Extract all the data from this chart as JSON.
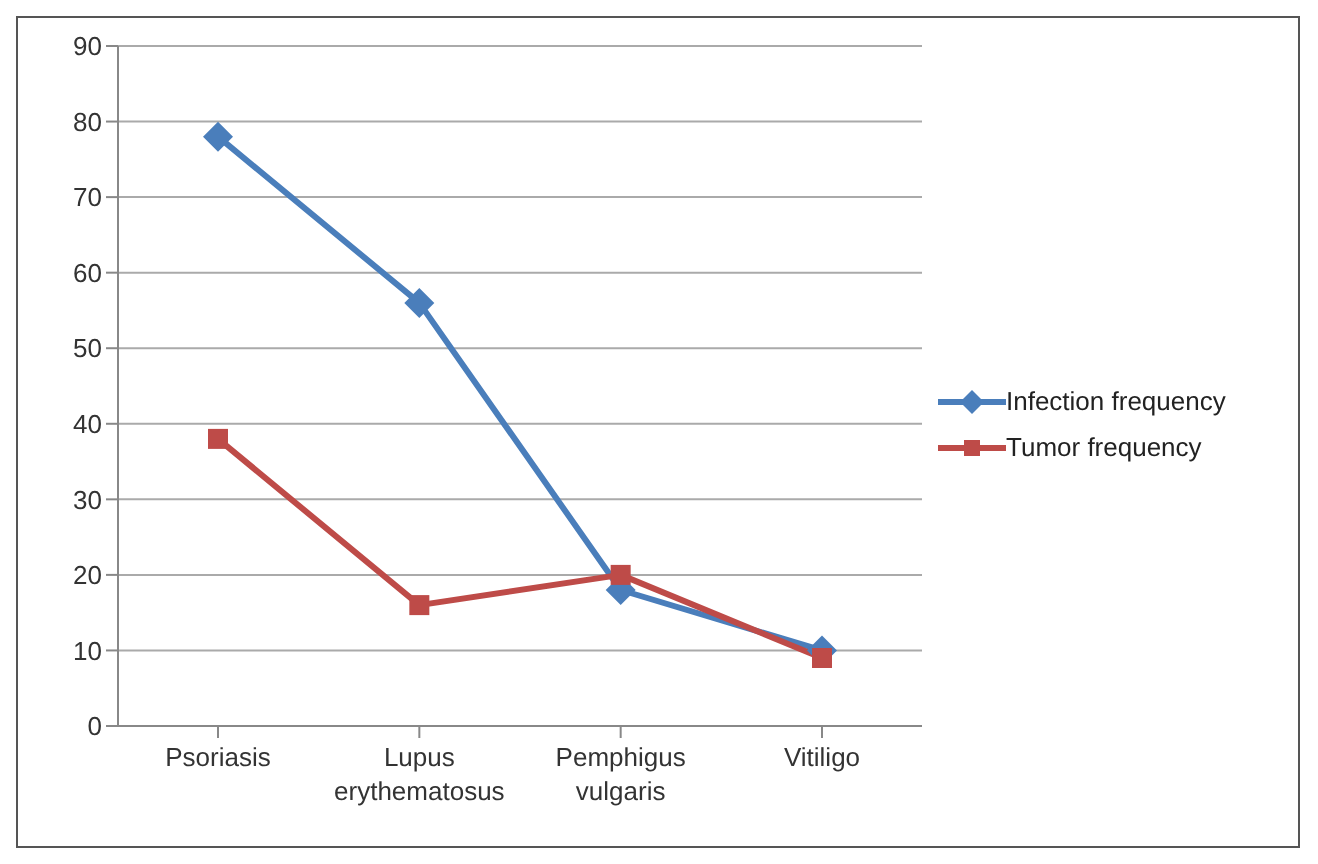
{
  "chart_data": {
    "type": "line",
    "categories": [
      "Psoriasis",
      "Lupus erythematosus",
      "Pemphigus vulgaris",
      "Vitiligo"
    ],
    "series": [
      {
        "name": "Infection frequency",
        "color": "#4a7ebb",
        "values": [
          78,
          56,
          18,
          10
        ],
        "marker": "diamond"
      },
      {
        "name": "Tumor frequency",
        "color": "#be4b48",
        "values": [
          38,
          16,
          20,
          9
        ],
        "marker": "square"
      }
    ],
    "ylim": [
      0,
      90
    ],
    "yticks": [
      0,
      10,
      20,
      30,
      40,
      50,
      60,
      70,
      80,
      90
    ],
    "grid": "y",
    "legend": "right",
    "line_style": "solid"
  }
}
